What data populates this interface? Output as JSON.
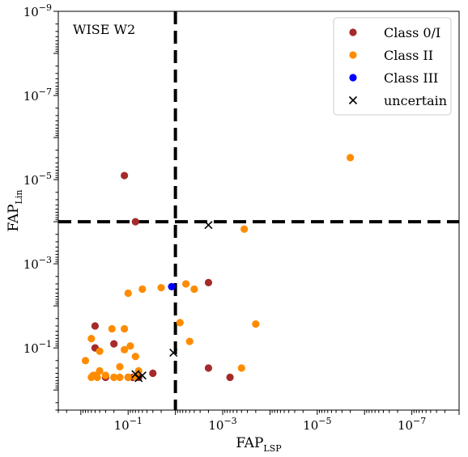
{
  "chart_data": {
    "type": "scatter",
    "panel_label": "WISE W2",
    "xlabel": {
      "main": "FAP",
      "sub": "LSP"
    },
    "ylabel": {
      "main": "FAP",
      "sub": "Lin"
    },
    "x_scale": "log",
    "y_scale": "log",
    "x_inverted": true,
    "y_inverted": true,
    "xlim": [
      3,
      1e-08
    ],
    "ylim": [
      3,
      1e-09
    ],
    "x_ticks": [
      {
        "value": 0.1,
        "base": "10",
        "exp": "−1"
      },
      {
        "value": 0.001,
        "base": "10",
        "exp": "−3"
      },
      {
        "value": 1e-05,
        "base": "10",
        "exp": "−5"
      },
      {
        "value": 1e-07,
        "base": "10",
        "exp": "−7"
      }
    ],
    "y_ticks": [
      {
        "value": 0.1,
        "base": "10",
        "exp": "−1"
      },
      {
        "value": 0.001,
        "base": "10",
        "exp": "−3"
      },
      {
        "value": 1e-05,
        "base": "10",
        "exp": "−5"
      },
      {
        "value": 1e-07,
        "base": "10",
        "exp": "−7"
      },
      {
        "value": 1e-09,
        "base": "10",
        "exp": "−9"
      }
    ],
    "threshold_lines": {
      "x": 0.01,
      "y": 0.0001,
      "style": "dashed",
      "color": "#000000"
    },
    "legend_position": "top-right",
    "grid": false,
    "series": [
      {
        "name": "Class 0/I",
        "marker": "circle",
        "color": "#a52a2a",
        "points": [
          [
            0.12,
            8e-06
          ],
          [
            0.07,
            0.0001
          ],
          [
            0.002,
            0.0028
          ],
          [
            0.5,
            0.1
          ],
          [
            0.2,
            0.08
          ],
          [
            0.5,
            0.03
          ],
          [
            0.3,
            0.5
          ],
          [
            0.1,
            0.5
          ],
          [
            0.08,
            0.5
          ],
          [
            0.06,
            0.5
          ],
          [
            0.03,
            0.4
          ],
          [
            0.002,
            0.3
          ],
          [
            0.0007,
            0.5
          ]
        ]
      },
      {
        "name": "Class II",
        "marker": "circle",
        "color": "#ff8c00",
        "points": [
          [
            2e-06,
            3e-06
          ],
          [
            0.00035,
            0.00015
          ],
          [
            0.02,
            0.0037
          ],
          [
            0.05,
            0.004
          ],
          [
            0.004,
            0.004
          ],
          [
            0.006,
            0.003
          ],
          [
            0.22,
            0.035
          ],
          [
            0.12,
            0.035
          ],
          [
            0.1,
            0.005
          ],
          [
            0.008,
            0.025
          ],
          [
            0.0002,
            0.027
          ],
          [
            0.005,
            0.07
          ],
          [
            0.6,
            0.06
          ],
          [
            0.4,
            0.12
          ],
          [
            0.09,
            0.09
          ],
          [
            0.12,
            0.11
          ],
          [
            0.8,
            0.2
          ],
          [
            0.07,
            0.16
          ],
          [
            0.15,
            0.28
          ],
          [
            0.06,
            0.35
          ],
          [
            0.4,
            0.35
          ],
          [
            0.5,
            0.45
          ],
          [
            0.6,
            0.5
          ],
          [
            0.45,
            0.5
          ],
          [
            0.2,
            0.5
          ],
          [
            0.15,
            0.5
          ],
          [
            0.1,
            0.5
          ],
          [
            0.07,
            0.48
          ],
          [
            0.3,
            0.45
          ],
          [
            0.55,
            0.45
          ],
          [
            0.0004,
            0.3
          ]
        ]
      },
      {
        "name": "Class III",
        "marker": "circle",
        "color": "#0000ff",
        "points": [
          [
            0.012,
            0.0035
          ]
        ]
      },
      {
        "name": "uncertain",
        "marker": "x",
        "color": "#000000",
        "points": [
          [
            0.002,
            0.00012
          ],
          [
            0.011,
            0.13
          ],
          [
            0.05,
            0.45
          ],
          [
            0.07,
            0.42
          ],
          [
            0.06,
            0.52
          ]
        ]
      }
    ]
  }
}
